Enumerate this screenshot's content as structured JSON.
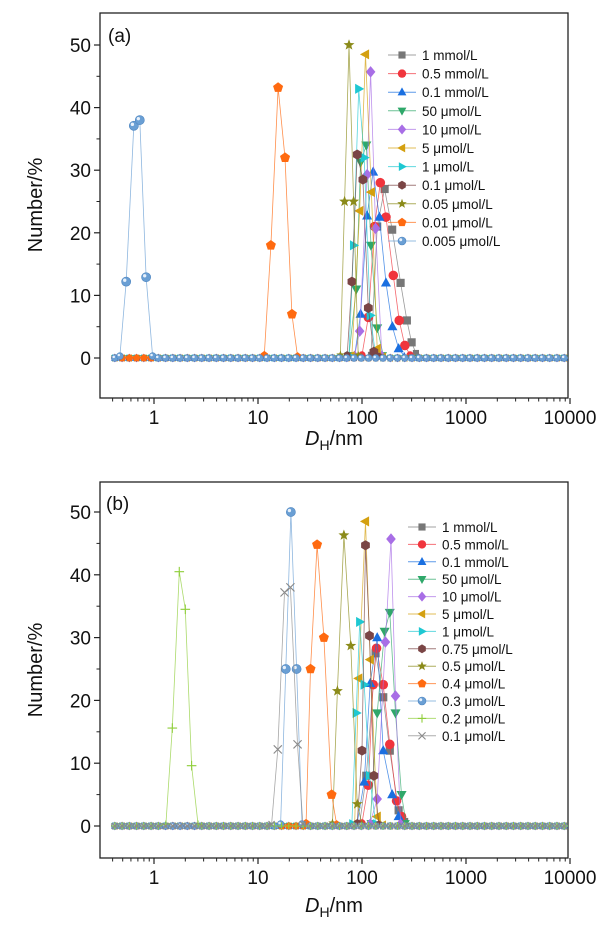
{
  "chart_data": [
    {
      "type": "line",
      "panel_label": "(a)",
      "title": "",
      "xlabel_main": "D",
      "xlabel_sub": "H",
      "xlabel_unit": "/nm",
      "ylabel": "Number/%",
      "xscale": "log",
      "xlim": [
        0.34,
        10000
      ],
      "ylim": [
        -5,
        55
      ],
      "xticks": [
        1,
        10,
        100,
        1000,
        10000
      ],
      "xtick_labels": [
        "1",
        "10",
        "100",
        "1000",
        "10000"
      ],
      "yticks": [
        0,
        10,
        20,
        30,
        40,
        50
      ],
      "ytick_labels": [
        "0",
        "10",
        "20",
        "30",
        "40",
        "50"
      ],
      "grid": false,
      "legend_position": "top-right",
      "series": [
        {
          "name": "1 mmol/L",
          "color": "#777777",
          "marker": "square",
          "points": [
            [
              122,
              0.5
            ],
            [
              140,
              21
            ],
            [
              165,
              27
            ],
            [
              195,
              20.5
            ],
            [
              235,
              12
            ],
            [
              270,
              6
            ],
            [
              300,
              2.5
            ],
            [
              330,
              0.8
            ]
          ]
        },
        {
          "name": "0.5 mmol/L",
          "color": "#f0353d",
          "marker": "circle",
          "points": [
            [
              100,
              0.5
            ],
            [
              115,
              6.5
            ],
            [
              132,
              21
            ],
            [
              150,
              28
            ],
            [
              170,
              22.5
            ],
            [
              200,
              13.2
            ],
            [
              228,
              6
            ],
            [
              258,
              2
            ],
            [
              290,
              0.5
            ]
          ]
        },
        {
          "name": "0.1 mmol/L",
          "color": "#1a6fe0",
          "marker": "triangle-up",
          "points": [
            [
              85,
              0.5
            ],
            [
              97,
              7
            ],
            [
              112,
              22.7
            ],
            [
              128,
              29.7
            ],
            [
              147,
              22.5
            ],
            [
              170,
              12
            ],
            [
              196,
              5
            ],
            [
              225,
              1.5
            ],
            [
              255,
              0.3
            ]
          ]
        },
        {
          "name": "50 μmol/L",
          "color": "#2fa86a",
          "marker": "triangle-down",
          "points": [
            [
              75,
              0.5
            ],
            [
              88,
              11
            ],
            [
              97,
              31.3
            ],
            [
              110,
              34
            ],
            [
              122,
              18
            ],
            [
              140,
              4.8
            ],
            [
              160,
              0.5
            ]
          ]
        },
        {
          "name": "10 μmol/L",
          "color": "#a86ee6",
          "marker": "diamond",
          "points": [
            [
              85,
              0.5
            ],
            [
              95,
              4.3
            ],
            [
              112,
              29.3
            ],
            [
              121,
              45.7
            ],
            [
              135,
              20.7
            ],
            [
              155,
              0.5
            ]
          ]
        },
        {
          "name": "5 μmol/L",
          "color": "#d4a010",
          "marker": "triangle-left",
          "points": [
            [
              80,
              0.5
            ],
            [
              95,
              23.5
            ],
            [
              108,
              48.5
            ],
            [
              123,
              26.5
            ],
            [
              140,
              1.5
            ],
            [
              160,
              0.3
            ]
          ]
        },
        {
          "name": "1 μmol/L",
          "color": "#1ec8d2",
          "marker": "triangle-right",
          "points": [
            [
              75,
              0.5
            ],
            [
              83,
              18
            ],
            [
              93,
              43
            ],
            [
              105,
              32
            ],
            [
              120,
              6.8
            ],
            [
              135,
              0.5
            ]
          ]
        },
        {
          "name": "0.1 μmol/L",
          "color": "#7a4545",
          "marker": "hexagon",
          "points": [
            [
              72,
              0.5
            ],
            [
              80,
              12.2
            ],
            [
              90,
              32.5
            ],
            [
              102,
              28.5
            ],
            [
              115,
              8
            ],
            [
              130,
              1
            ],
            [
              145,
              0.3
            ]
          ]
        },
        {
          "name": "0.05 μmol/L",
          "color": "#8b8b1a",
          "marker": "star",
          "points": [
            [
              62,
              0.5
            ],
            [
              68,
              25
            ],
            [
              75,
              50
            ],
            [
              83,
              25
            ],
            [
              92,
              0.5
            ]
          ]
        },
        {
          "name": "0.01 μmol/L",
          "color": "#ff6a10",
          "marker": "pentagon",
          "points": [
            [
              11.5,
              0.5
            ],
            [
              13.3,
              18
            ],
            [
              15.6,
              43.2
            ],
            [
              18.2,
              32
            ],
            [
              21.2,
              7
            ],
            [
              24,
              0.3
            ]
          ]
        },
        {
          "name": "0.005 μmol/L",
          "color": "#6a9fd4",
          "marker": "sphere",
          "points": [
            [
              0.47,
              0.3
            ],
            [
              0.54,
              12.2
            ],
            [
              0.64,
              37.1
            ],
            [
              0.73,
              38
            ],
            [
              0.84,
              12.9
            ],
            [
              0.97,
              0.3
            ]
          ]
        }
      ]
    },
    {
      "type": "line",
      "panel_label": "(b)",
      "title": "",
      "xlabel_main": "D",
      "xlabel_sub": "H",
      "xlabel_unit": "/nm",
      "ylabel": "Number/%",
      "xscale": "log",
      "xlim": [
        0.34,
        10000
      ],
      "ylim": [
        -5,
        55
      ],
      "xticks": [
        1,
        10,
        100,
        1000,
        10000
      ],
      "xtick_labels": [
        "1",
        "10",
        "100",
        "1000",
        "10000"
      ],
      "yticks": [
        0,
        10,
        20,
        30,
        40,
        50
      ],
      "ytick_labels": [
        "0",
        "10",
        "20",
        "30",
        "40",
        "50"
      ],
      "grid": false,
      "legend_position": "top-right",
      "series": [
        {
          "name": "1 mmol/L",
          "color": "#777777",
          "marker": "square",
          "points": [
            [
              95,
              0.5
            ],
            [
              110,
              8
            ],
            [
              135,
              27.5
            ],
            [
              160,
              20.5
            ],
            [
              185,
              12
            ],
            [
              225,
              2.5
            ],
            [
              260,
              0.8
            ]
          ]
        },
        {
          "name": "0.5 mmol/L",
          "color": "#f0353d",
          "marker": "circle",
          "points": [
            [
              100,
              0.5
            ],
            [
              115,
              6.5
            ],
            [
              128,
              22.5
            ],
            [
              138,
              28.3
            ],
            [
              160,
              22.5
            ],
            [
              185,
              13
            ],
            [
              215,
              4
            ],
            [
              240,
              1.5
            ]
          ]
        },
        {
          "name": "0.1 mmol/L",
          "color": "#1a6fe0",
          "marker": "triangle-up",
          "points": [
            [
              90,
              0.5
            ],
            [
              105,
              7
            ],
            [
              120,
              22.7
            ],
            [
              140,
              30
            ],
            [
              160,
              12
            ],
            [
              195,
              5
            ],
            [
              225,
              1.5
            ],
            [
              250,
              0.3
            ]
          ]
        },
        {
          "name": "50 μmol/L",
          "color": "#2fa86a",
          "marker": "triangle-down",
          "points": [
            [
              120,
              0.5
            ],
            [
              140,
              18
            ],
            [
              165,
              31
            ],
            [
              185,
              34
            ],
            [
              210,
              18
            ],
            [
              240,
              5
            ],
            [
              265,
              0.5
            ]
          ]
        },
        {
          "name": "10 μmol/L",
          "color": "#a86ee6",
          "marker": "diamond",
          "points": [
            [
              120,
              0.5
            ],
            [
              140,
              4.3
            ],
            [
              168,
              29.3
            ],
            [
              190,
              45.7
            ],
            [
              210,
              20.7
            ],
            [
              235,
              0.5
            ]
          ]
        },
        {
          "name": "5 μmol/L",
          "color": "#d4a010",
          "marker": "triangle-left",
          "points": [
            [
              85,
              0.5
            ],
            [
              93,
              23.5
            ],
            [
              108,
              48.5
            ],
            [
              120,
              26.5
            ],
            [
              140,
              1.5
            ],
            [
              160,
              0.3
            ]
          ]
        },
        {
          "name": "1 μmol/L",
          "color": "#1ec8d2",
          "marker": "triangle-right",
          "points": [
            [
              80,
              0.5
            ],
            [
              88,
              18
            ],
            [
              95,
              32.5
            ],
            [
              105,
              22.5
            ],
            [
              118,
              8
            ],
            [
              135,
              0.5
            ]
          ]
        },
        {
          "name": "0.75 μmol/L",
          "color": "#7a4545",
          "marker": "hexagon",
          "points": [
            [
              90,
              0.5
            ],
            [
              100,
              12
            ],
            [
              108,
              44.7
            ],
            [
              118,
              30.3
            ],
            [
              130,
              8
            ],
            [
              145,
              0.3
            ]
          ]
        },
        {
          "name": "0.5 μmol/L",
          "color": "#8b8b1a",
          "marker": "star",
          "points": [
            [
              52,
              0.5
            ],
            [
              58,
              21.5
            ],
            [
              67,
              46.3
            ],
            [
              78,
              28.7
            ],
            [
              90,
              3.5
            ],
            [
              100,
              0.3
            ]
          ]
        },
        {
          "name": "0.4 μmol/L",
          "color": "#ff6a10",
          "marker": "pentagon",
          "points": [
            [
              29,
              0.5
            ],
            [
              32,
              25
            ],
            [
              37,
              44.8
            ],
            [
              43,
              30
            ],
            [
              51,
              5
            ],
            [
              57,
              0.3
            ]
          ]
        },
        {
          "name": "0.3 μmol/L",
          "color": "#6a9fd4",
          "marker": "sphere",
          "points": [
            [
              16.5,
              0.3
            ],
            [
              18.5,
              25
            ],
            [
              20.7,
              50
            ],
            [
              23.5,
              25
            ],
            [
              26.5,
              0.3
            ]
          ]
        },
        {
          "name": "0.2 μmol/L",
          "color": "#8fce3a",
          "marker": "plus",
          "points": [
            [
              1.3,
              0.3
            ],
            [
              1.5,
              15.6
            ],
            [
              1.75,
              40.5
            ],
            [
              2.0,
              34.5
            ],
            [
              2.3,
              9.6
            ],
            [
              2.65,
              0.3
            ]
          ]
        },
        {
          "name": "0.1 μmol/L",
          "color": "#8a8a8a",
          "marker": "cross",
          "points": [
            [
              13.5,
              0.3
            ],
            [
              15.5,
              12.2
            ],
            [
              18,
              37.2
            ],
            [
              20.5,
              38
            ],
            [
              24,
              13
            ],
            [
              27,
              0.3
            ]
          ]
        }
      ]
    }
  ]
}
